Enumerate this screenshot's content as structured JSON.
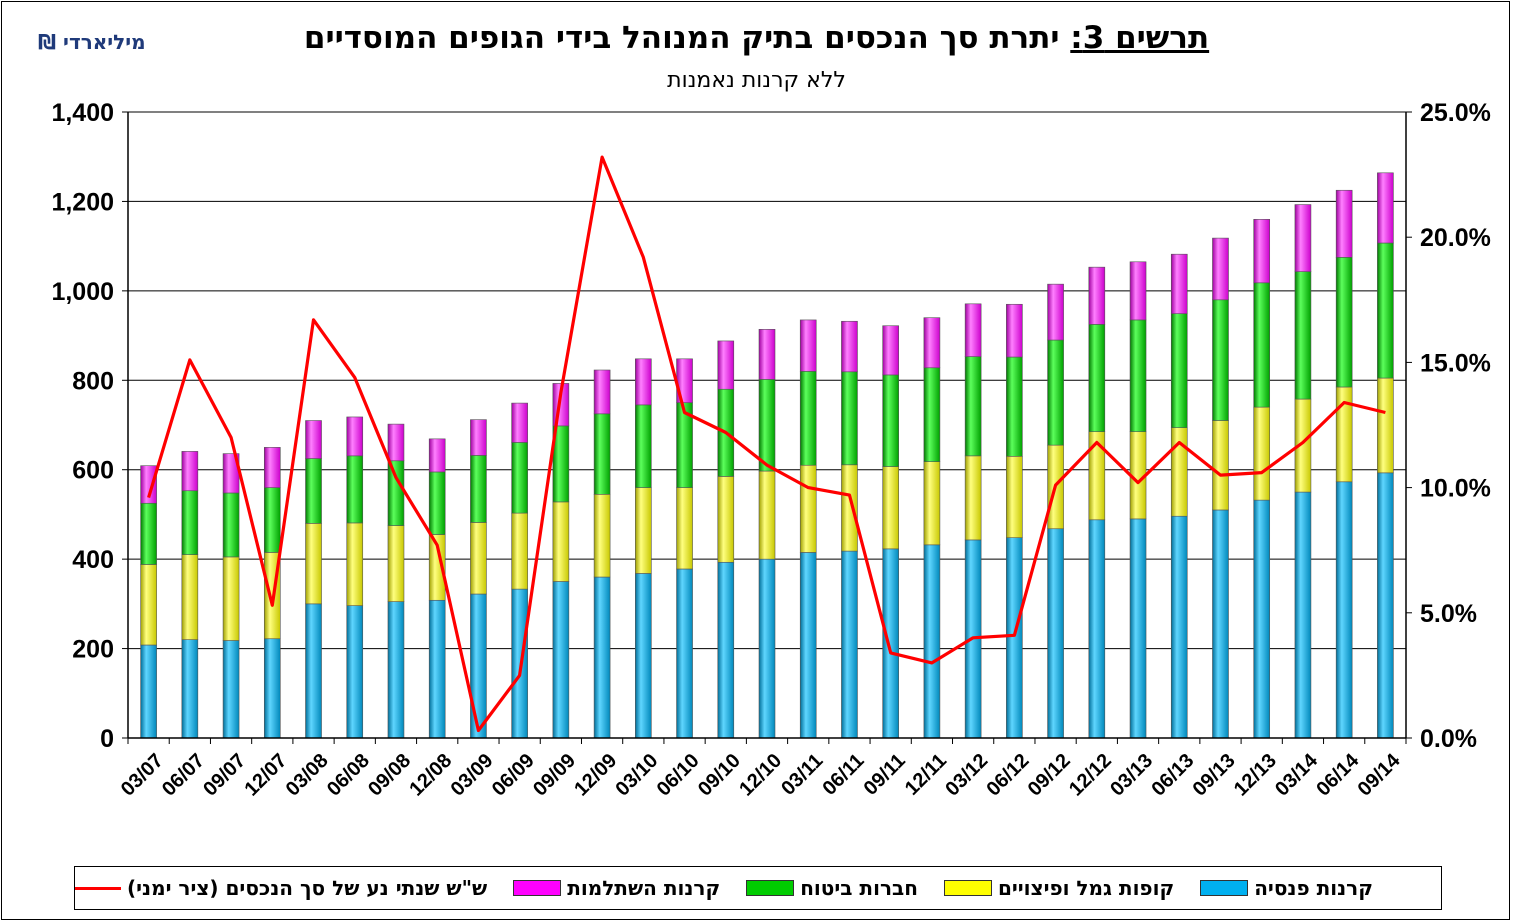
{
  "title_prefix": "תרשים 3:",
  "title_text": "יתרת סך הנכסים בתיק המנוהל בידי הגופים המוסדיים",
  "subtitle": "ללא קרנות נאמנות",
  "unit_label": "מיליארדי ₪",
  "chart_data": {
    "type": "bar",
    "stacked": true,
    "categories": [
      "03/07",
      "06/07",
      "09/07",
      "12/07",
      "03/08",
      "06/08",
      "09/08",
      "12/08",
      "03/09",
      "06/09",
      "09/09",
      "12/09",
      "03/10",
      "06/10",
      "09/10",
      "12/10",
      "03/11",
      "06/11",
      "09/11",
      "12/11",
      "03/12",
      "06/12",
      "09/12",
      "12/12",
      "03/13",
      "06/13",
      "09/13",
      "12/13",
      "03/14",
      "06/14",
      "09/14"
    ],
    "series": [
      {
        "name": "קרנות פנסיה",
        "color": "#00b0f0",
        "values": [
          208,
          220,
          218,
          222,
          300,
          296,
          305,
          308,
          322,
          333,
          350,
          360,
          368,
          378,
          393,
          400,
          415,
          418,
          423,
          432,
          443,
          448,
          468,
          488,
          490,
          496,
          510,
          532,
          550,
          573,
          593
        ]
      },
      {
        "name": "קופות גמל ופיצויים",
        "color": "#ffff00",
        "values": [
          180,
          190,
          187,
          193,
          180,
          185,
          170,
          147,
          160,
          170,
          178,
          185,
          192,
          182,
          192,
          197,
          195,
          193,
          184,
          186,
          188,
          182,
          187,
          197,
          195,
          198,
          200,
          208,
          208,
          212,
          212
        ]
      },
      {
        "name": "חברות ביטוח",
        "color": "#00cc00",
        "values": [
          137,
          143,
          143,
          145,
          145,
          150,
          145,
          140,
          150,
          158,
          170,
          180,
          185,
          190,
          195,
          205,
          210,
          208,
          205,
          210,
          222,
          222,
          235,
          240,
          250,
          255,
          270,
          278,
          285,
          290,
          302
        ]
      },
      {
        "name": "קרנות השתלמות",
        "color": "#ff00ff",
        "values": [
          84,
          88,
          88,
          90,
          85,
          87,
          82,
          74,
          80,
          88,
          95,
          98,
          103,
          98,
          108,
          112,
          115,
          113,
          110,
          112,
          118,
          118,
          125,
          128,
          130,
          133,
          138,
          142,
          150,
          150,
          157
        ]
      },
      {
        "name": "ש\"ש שנתי נע של סך הנכסים (ציר ימני)",
        "color": "#ff0000",
        "type": "line",
        "axis": "right",
        "values": [
          9.6,
          15.1,
          12.0,
          5.3,
          16.7,
          14.4,
          10.4,
          7.7,
          0.3,
          2.5,
          13.8,
          23.2,
          19.2,
          13.0,
          12.2,
          10.9,
          10.0,
          9.7,
          3.4,
          3.0,
          4.0,
          4.1,
          10.1,
          11.8,
          10.2,
          11.8,
          10.5,
          10.6,
          11.8,
          13.4,
          13.0
        ]
      }
    ],
    "yaxis_left": {
      "min": 0,
      "max": 1400,
      "ticks": [
        "0",
        "200",
        "400",
        "600",
        "800",
        "1,000",
        "1,200",
        "1,400"
      ]
    },
    "yaxis_right": {
      "min": 0,
      "max": 25,
      "ticks": [
        "0.0%",
        "5.0%",
        "10.0%",
        "15.0%",
        "20.0%",
        "25.0%"
      ]
    },
    "grid": true,
    "legend_position": "bottom"
  },
  "legend": {
    "items": [
      {
        "label": "קרנות פנסיה",
        "color": "#00b0f0",
        "kind": "bar"
      },
      {
        "label": "קופות גמל ופיצויים",
        "color": "#ffff00",
        "kind": "bar"
      },
      {
        "label": "חברות ביטוח",
        "color": "#00cc00",
        "kind": "bar"
      },
      {
        "label": "קרנות השתלמות",
        "color": "#ff00ff",
        "kind": "bar"
      },
      {
        "label": "ש\"ש שנתי נע של סך הנכסים (ציר ימני)",
        "color": "#ff0000",
        "kind": "line"
      }
    ]
  }
}
